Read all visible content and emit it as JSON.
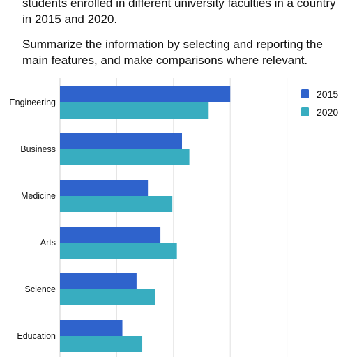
{
  "prompt": {
    "line1": "students enrolled in different university faculties in a country",
    "line2": "in 2015 and 2020.",
    "line3": "Summarize the information by selecting and reporting the",
    "line4": "main features, and make comparisons where relevant."
  },
  "chart_data": {
    "type": "bar",
    "orientation": "horizontal",
    "categories": [
      "Engineering",
      "Business",
      "Medicine",
      "Arts",
      "Science",
      "Education"
    ],
    "series": [
      {
        "name": "2015",
        "color": "#2f63cc",
        "values": [
          300,
          215,
          155,
          177,
          135,
          110
        ]
      },
      {
        "name": "2020",
        "color": "#38adc0",
        "values": [
          262,
          228,
          198,
          206,
          168,
          145
        ]
      }
    ],
    "xlim": [
      0,
      400
    ],
    "grid": true,
    "legend_position": "top-right",
    "title": "",
    "xlabel": "",
    "ylabel": ""
  }
}
